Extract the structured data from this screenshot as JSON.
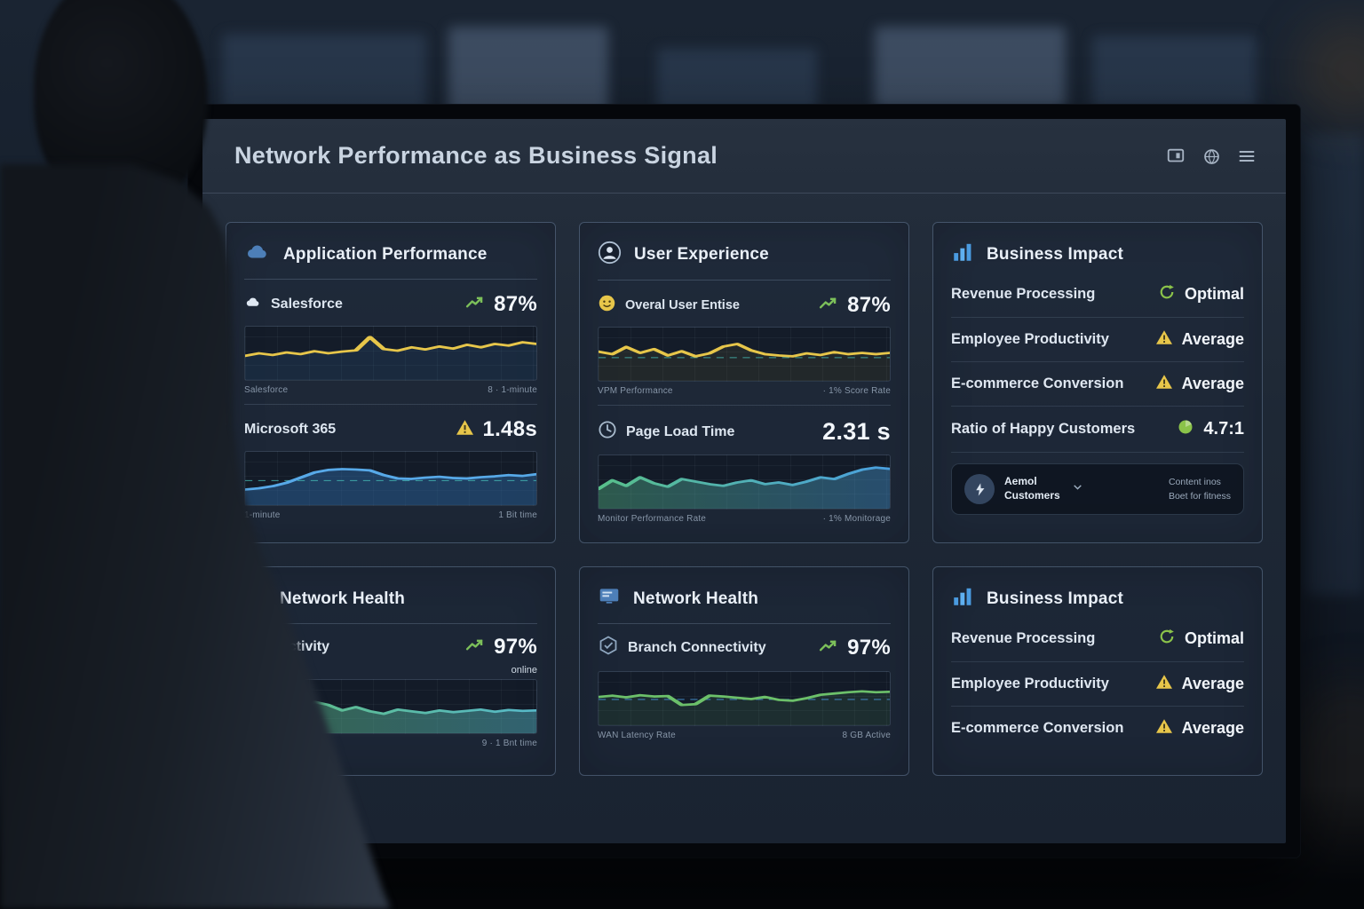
{
  "screen": {
    "title": "Network Performance as Business Signal",
    "header_icons": [
      "display-icon",
      "globe-icon",
      "menu-icon"
    ]
  },
  "cards": {
    "app_performance": {
      "title": "Application Performance",
      "metric1": {
        "label": "Salesforce",
        "value": "87%"
      },
      "metric1_caption_left": "Salesforce",
      "metric1_caption_right": "8 · 1-minute",
      "metric2": {
        "label": "Microsoft 365",
        "value": "1.48s"
      },
      "metric2_caption_left": "1-minute",
      "metric2_caption_right": "1 Bit time"
    },
    "user_experience": {
      "title": "User Experience",
      "metric1": {
        "label": "Overal User Entise",
        "value": "87%"
      },
      "metric1_caption_left": "VPM Performance",
      "metric1_caption_right": "· 1% Score Rate",
      "metric2": {
        "label": "Page Load Time",
        "value": "2.31 s"
      },
      "metric2_caption_left": "Monitor Performance Rate",
      "metric2_caption_right": "· 1% Monitorage"
    },
    "business_impact_top": {
      "title": "Business Impact",
      "rows": [
        {
          "label": "Revenue Processing",
          "value": "Optimal"
        },
        {
          "label": "Employee Productivity",
          "value": "Average"
        },
        {
          "label": "E-commerce Conversion",
          "value": "Average"
        },
        {
          "label": "Ratio of Happy Customers",
          "value": "4.7:1"
        }
      ],
      "panel": {
        "label_line1": "Aemol",
        "label_line2": "Customers",
        "desc_line1": "Content inos",
        "desc_line2": "Boet for fitness"
      }
    },
    "network_health_left": {
      "title": "Network Health",
      "metric": {
        "label": "Connectivity",
        "value": "97%"
      },
      "status": "online",
      "caption_left": "",
      "caption_right": "9 · 1 Bnt time"
    },
    "network_health_mid": {
      "title": "Network Health",
      "metric": {
        "label": "Branch Connectivity",
        "value": "97%"
      },
      "caption_left": "WAN Latency Rate",
      "caption_right": "8 GB Active"
    },
    "business_impact_bottom": {
      "title": "Business Impact",
      "rows": [
        {
          "label": "Revenue Processing",
          "value": "Optimal"
        },
        {
          "label": "Employee Productivity",
          "value": "Average"
        },
        {
          "label": "E-commerce Conversion",
          "value": "Average"
        }
      ]
    }
  },
  "colors": {
    "accent_yellow": "#e7c64a",
    "accent_green": "#7cc05a",
    "accent_blue": "#4a9be0",
    "warning": "#e7c64a",
    "text_primary": "#e9eff7",
    "text_muted": "#8796a8"
  },
  "chart_data": [
    {
      "id": "salesforce-response",
      "type": "line",
      "label": "Salesforce 87%",
      "color": "#e7c64a",
      "fill": "#3a6ea5",
      "fill_opacity": 0.18,
      "values": [
        44,
        50,
        46,
        52,
        48,
        55,
        50,
        54,
        57,
        88,
        60,
        56,
        64,
        59,
        66,
        61,
        70,
        64,
        72,
        68,
        76,
        72
      ]
    },
    {
      "id": "microsoft365-response",
      "type": "area",
      "label": "Microsoft 365 1.48s",
      "color": "#57a9e8",
      "fill": "#2e6da8",
      "fill_opacity": 0.45,
      "baseline": 45,
      "baseline_color": "#49c7c0",
      "values": [
        24,
        27,
        32,
        40,
        52,
        64,
        70,
        72,
        71,
        69,
        58,
        50,
        49,
        52,
        54,
        51,
        50,
        53,
        55,
        58,
        56,
        60
      ]
    },
    {
      "id": "user-experience-score",
      "type": "line",
      "label": "Overall User Experience 87%",
      "color": "#e7c64a",
      "fill": "#e7c64a",
      "fill_opacity": 0.07,
      "baseline": 42,
      "baseline_color": "#49c7c0",
      "values": [
        56,
        50,
        67,
        53,
        62,
        47,
        57,
        45,
        52,
        68,
        74,
        59,
        50,
        47,
        45,
        52,
        48,
        55,
        50,
        53,
        50,
        53
      ]
    },
    {
      "id": "page-load-time",
      "type": "area",
      "label": "Page Load Time 2.31 s",
      "gradient": [
        "#58c08a",
        "#4aa0e0"
      ],
      "fill_opacity": 0.38,
      "values": [
        34,
        54,
        41,
        61,
        47,
        39,
        57,
        51,
        45,
        41,
        49,
        54,
        45,
        49,
        43,
        51,
        61,
        57,
        69,
        79,
        84,
        81
      ]
    },
    {
      "id": "wan-connectivity",
      "type": "area",
      "label": "Connectivity 97%",
      "gradient": [
        "#5fbe7d",
        "#57b9c9"
      ],
      "fill_opacity": 0.45,
      "values": [
        14,
        18,
        23,
        29,
        44,
        61,
        54,
        41,
        49,
        39,
        33,
        43,
        39,
        35,
        41,
        37,
        40,
        43,
        38,
        42,
        40,
        41
      ]
    },
    {
      "id": "branch-connectivity",
      "type": "line",
      "label": "Branch Connectivity 97%",
      "color": "#6cc06a",
      "fill": "#6cc06a",
      "fill_opacity": 0.12,
      "baseline": 48,
      "baseline_color": "#4a9be0",
      "values": [
        54,
        57,
        53,
        58,
        55,
        56,
        35,
        37,
        57,
        55,
        52,
        49,
        54,
        47,
        45,
        51,
        59,
        62,
        65,
        67,
        65,
        66
      ]
    }
  ]
}
